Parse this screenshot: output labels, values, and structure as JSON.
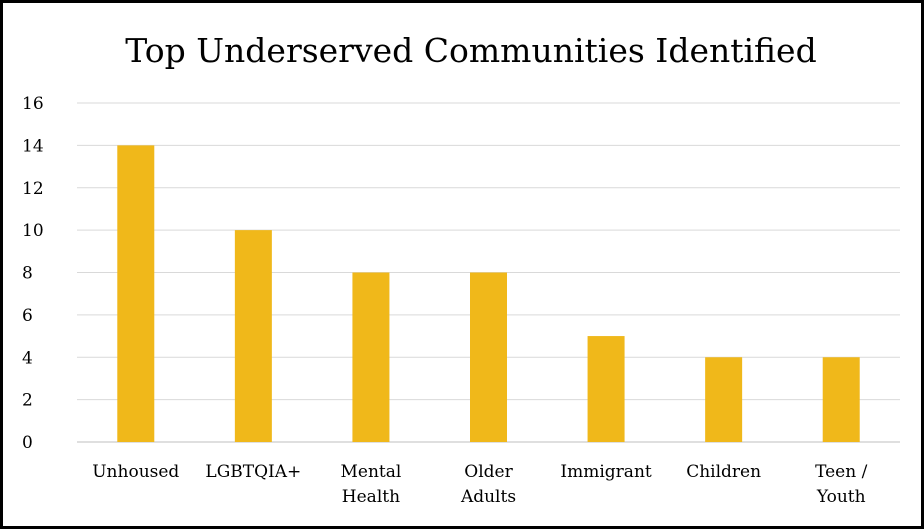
{
  "chart_data": {
    "type": "bar",
    "title": "Top Underserved Communities Identified",
    "categories": [
      [
        "Unhoused"
      ],
      [
        "LGBTQIA+"
      ],
      [
        "Mental",
        "Health"
      ],
      [
        "Older",
        "Adults"
      ],
      [
        "Immigrant"
      ],
      [
        "Children"
      ],
      [
        "Teen /",
        "Youth"
      ]
    ],
    "values": [
      14,
      10,
      8,
      8,
      5,
      4,
      4
    ],
    "ylim": [
      0,
      16
    ],
    "yticks": [
      "0",
      "2",
      "4",
      "6",
      "8",
      "10",
      "12",
      "14",
      "16"
    ],
    "xlabel": "",
    "ylabel": "",
    "grid": true,
    "legend": "none",
    "colors": {
      "bar": "#F0B81A",
      "grid": "#D9D9D9",
      "axis": "#BFBFBF"
    }
  }
}
